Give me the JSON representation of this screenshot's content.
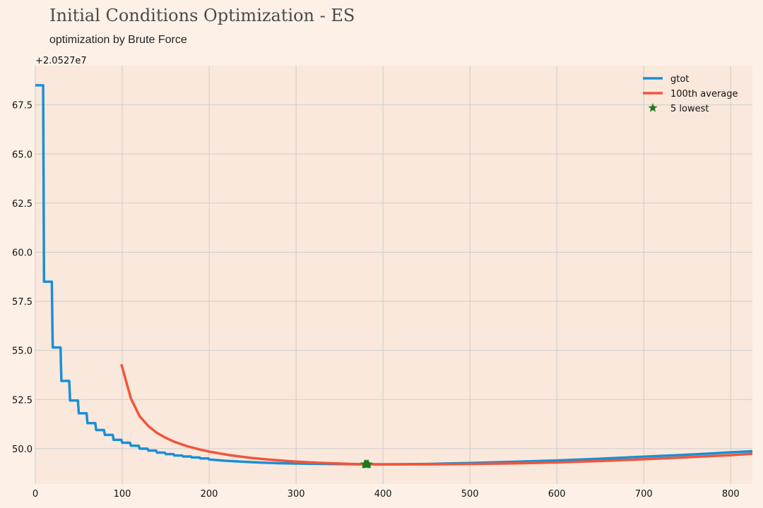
{
  "chart_data": {
    "type": "line",
    "title": "Initial Conditions Optimization - ES",
    "subtitle": "optimization by Brute Force",
    "y_offset_label": "+2.0527e7",
    "xlim": [
      0,
      825
    ],
    "ylim": [
      48.2,
      69.5
    ],
    "x_ticks": [
      0,
      100,
      200,
      300,
      400,
      500,
      600,
      700,
      800
    ],
    "y_ticks": [
      50.0,
      52.5,
      55.0,
      57.5,
      60.0,
      62.5,
      65.0,
      67.5
    ],
    "grid": true,
    "legend_position": "top-right",
    "colors": {
      "background": "#fdf1e7",
      "plot_background": "#fae8dc",
      "grid": "#cccccc",
      "gtot": "#1a8fd6",
      "average": "#f0553b",
      "lowest": "#1b7a1b"
    },
    "series": [
      {
        "name": "gtot",
        "kind": "step",
        "x": [
          0,
          9,
          10,
          19,
          20,
          29,
          30,
          39,
          40,
          49,
          50,
          59,
          60,
          69,
          70,
          79,
          80,
          89,
          90,
          99,
          100,
          109,
          110,
          119,
          120,
          129,
          130,
          139,
          140,
          149,
          150,
          159,
          160,
          169,
          170,
          179,
          180,
          189,
          190,
          199,
          200,
          220,
          240,
          260,
          280,
          300,
          320,
          340,
          360,
          380,
          400,
          450,
          500,
          550,
          600,
          650,
          700,
          750,
          800,
          825
        ],
        "y": [
          68.5,
          68.5,
          58.5,
          58.5,
          55.15,
          55.15,
          53.45,
          53.45,
          52.45,
          52.45,
          51.8,
          51.8,
          51.3,
          51.3,
          50.95,
          50.95,
          50.7,
          50.7,
          50.45,
          50.45,
          50.3,
          50.3,
          50.15,
          50.15,
          50.0,
          50.0,
          49.9,
          49.9,
          49.8,
          49.8,
          49.72,
          49.72,
          49.65,
          49.65,
          49.6,
          49.6,
          49.55,
          49.55,
          49.5,
          49.5,
          49.45,
          49.38,
          49.33,
          49.29,
          49.26,
          49.24,
          49.23,
          49.22,
          49.21,
          49.2,
          49.2,
          49.22,
          49.27,
          49.33,
          49.4,
          49.49,
          49.59,
          49.69,
          49.81,
          49.87
        ]
      },
      {
        "name": "100th average",
        "kind": "line",
        "x": [
          99,
          110,
          120,
          130,
          140,
          150,
          160,
          175,
          190,
          200,
          225,
          250,
          275,
          300,
          325,
          350,
          375,
          400,
          425,
          450,
          500,
          550,
          600,
          650,
          700,
          750,
          800,
          825
        ],
        "y": [
          54.3,
          52.55,
          51.65,
          51.15,
          50.8,
          50.55,
          50.35,
          50.12,
          49.95,
          49.85,
          49.66,
          49.52,
          49.42,
          49.34,
          49.28,
          49.24,
          49.21,
          49.2,
          49.2,
          49.2,
          49.22,
          49.25,
          49.3,
          49.37,
          49.46,
          49.56,
          49.67,
          49.74
        ]
      },
      {
        "name": "5 lowest",
        "kind": "scatter",
        "x": [
          379,
          380,
          381,
          382,
          383
        ],
        "y": [
          49.21,
          49.2,
          49.2,
          49.2,
          49.21
        ]
      }
    ]
  }
}
